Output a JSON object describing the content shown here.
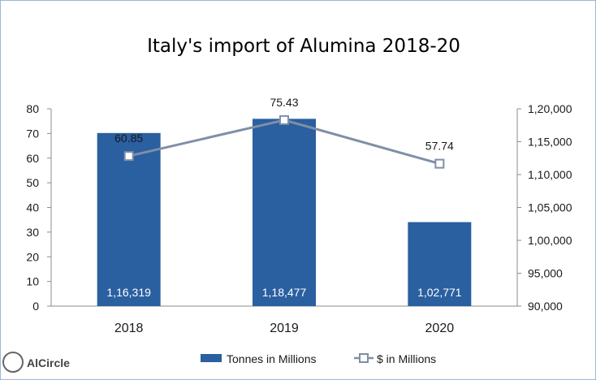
{
  "chart_data": {
    "type": "bar",
    "title": "Italy's import of Alumina 2018-20",
    "categories": [
      "2018",
      "2019",
      "2020"
    ],
    "series": [
      {
        "name": "Tonnes in Millions",
        "type": "bar",
        "axis": "right",
        "values": [
          116319,
          118477,
          102771
        ],
        "labels": [
          "1,16,319",
          "1,18,477",
          "1,02,771"
        ],
        "color": "#2a5fa0"
      },
      {
        "name": "$ in Millions",
        "type": "line",
        "axis": "left",
        "values": [
          60.85,
          75.43,
          57.74
        ],
        "labels": [
          "60.85",
          "75.43",
          "57.74"
        ],
        "color": "#7f8fa6"
      }
    ],
    "y_left": {
      "min": 0,
      "max": 80,
      "ticks": [
        "0",
        "10",
        "20",
        "30",
        "40",
        "50",
        "60",
        "70",
        "80"
      ]
    },
    "y_right": {
      "min": 90000,
      "max": 120000,
      "ticks": [
        "90,000",
        "95,000",
        "1,00,000",
        "1,05,000",
        "1,10,000",
        "1,15,000",
        "1,20,000"
      ]
    },
    "grid": false,
    "legend_position": "bottom"
  },
  "logo": {
    "name": "alcircle-logo",
    "text": "AlCircle"
  }
}
